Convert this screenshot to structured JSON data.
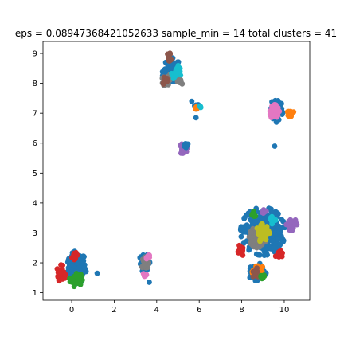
{
  "chart_data": {
    "type": "scatter",
    "title": "eps = 0.08947368421052633 sample_min = 14 total clusters = 41",
    "xlabel": "",
    "ylabel": "",
    "xlim": [
      -1.35,
      11.2
    ],
    "ylim": [
      0.75,
      9.4
    ],
    "xticks": [
      0,
      2,
      4,
      6,
      8,
      10
    ],
    "yticks": [
      1,
      2,
      3,
      4,
      5,
      6,
      7,
      8,
      9
    ],
    "grid": false,
    "legend": "none",
    "colors": [
      "#1f77b4",
      "#ff7f0e",
      "#2ca02c",
      "#d62728",
      "#9467bd",
      "#8c564b",
      "#e377c2",
      "#7f7f7f",
      "#bcbd22",
      "#17becf"
    ],
    "blobs": [
      {
        "cx": 0.25,
        "cy": 1.85,
        "rx": 0.45,
        "ry": 0.55,
        "n": 180,
        "color": "#1f77b4"
      },
      {
        "cx": -0.5,
        "cy": 1.65,
        "rx": 0.22,
        "ry": 0.28,
        "n": 30,
        "color": "#d62728"
      },
      {
        "cx": 0.2,
        "cy": 1.45,
        "rx": 0.3,
        "ry": 0.25,
        "n": 40,
        "color": "#2ca02c"
      },
      {
        "cx": 0.15,
        "cy": 2.2,
        "rx": 0.15,
        "ry": 0.15,
        "n": 12,
        "color": "#d62728"
      },
      {
        "cx": 3.45,
        "cy": 2.0,
        "rx": 0.3,
        "ry": 0.3,
        "n": 45,
        "color": "#1f77b4"
      },
      {
        "cx": 3.45,
        "cy": 2.0,
        "rx": 0.2,
        "ry": 0.2,
        "n": 25,
        "color": "#7f7f7f"
      },
      {
        "cx": 3.6,
        "cy": 2.2,
        "rx": 0.12,
        "ry": 0.12,
        "n": 10,
        "color": "#e377c2"
      },
      {
        "cx": 3.45,
        "cy": 1.6,
        "rx": 0.12,
        "ry": 0.1,
        "n": 10,
        "color": "#e377c2"
      },
      {
        "cx": 4.7,
        "cy": 8.4,
        "rx": 0.45,
        "ry": 0.45,
        "n": 90,
        "color": "#1f77b4"
      },
      {
        "cx": 4.5,
        "cy": 8.1,
        "rx": 0.25,
        "ry": 0.22,
        "n": 30,
        "color": "#7f7f7f"
      },
      {
        "cx": 4.95,
        "cy": 8.35,
        "rx": 0.25,
        "ry": 0.25,
        "n": 30,
        "color": "#17becf"
      },
      {
        "cx": 4.4,
        "cy": 8.1,
        "rx": 0.15,
        "ry": 0.15,
        "n": 12,
        "color": "#8c564b"
      },
      {
        "cx": 4.6,
        "cy": 8.9,
        "rx": 0.15,
        "ry": 0.15,
        "n": 12,
        "color": "#8c564b"
      },
      {
        "cx": 5.1,
        "cy": 8.05,
        "rx": 0.12,
        "ry": 0.12,
        "n": 10,
        "color": "#7f7f7f"
      },
      {
        "cx": 5.25,
        "cy": 5.8,
        "rx": 0.2,
        "ry": 0.18,
        "n": 25,
        "color": "#9467bd"
      },
      {
        "cx": 5.35,
        "cy": 5.95,
        "rx": 0.12,
        "ry": 0.1,
        "n": 10,
        "color": "#1f77b4"
      },
      {
        "cx": 5.85,
        "cy": 7.2,
        "rx": 0.15,
        "ry": 0.12,
        "n": 10,
        "color": "#1f77b4"
      },
      {
        "cx": 5.85,
        "cy": 7.15,
        "rx": 0.08,
        "ry": 0.08,
        "n": 6,
        "color": "#ff7f0e"
      },
      {
        "cx": 6.05,
        "cy": 7.2,
        "rx": 0.06,
        "ry": 0.06,
        "n": 4,
        "color": "#17becf"
      },
      {
        "cx": 9.65,
        "cy": 7.15,
        "rx": 0.3,
        "ry": 0.45,
        "n": 80,
        "color": "#1f77b4"
      },
      {
        "cx": 9.55,
        "cy": 7.05,
        "rx": 0.22,
        "ry": 0.28,
        "n": 40,
        "color": "#e377c2"
      },
      {
        "cx": 10.3,
        "cy": 7.0,
        "rx": 0.15,
        "ry": 0.12,
        "n": 12,
        "color": "#ff7f0e"
      },
      {
        "cx": 9.0,
        "cy": 3.05,
        "rx": 1.05,
        "ry": 0.8,
        "n": 320,
        "color": "#1f77b4"
      },
      {
        "cx": 8.75,
        "cy": 2.85,
        "rx": 0.4,
        "ry": 0.35,
        "n": 55,
        "color": "#7f7f7f"
      },
      {
        "cx": 9.0,
        "cy": 3.0,
        "rx": 0.35,
        "ry": 0.3,
        "n": 45,
        "color": "#bcbd22"
      },
      {
        "cx": 10.35,
        "cy": 3.3,
        "rx": 0.25,
        "ry": 0.22,
        "n": 30,
        "color": "#9467bd"
      },
      {
        "cx": 9.75,
        "cy": 2.3,
        "rx": 0.18,
        "ry": 0.15,
        "n": 15,
        "color": "#d62728"
      },
      {
        "cx": 7.95,
        "cy": 2.4,
        "rx": 0.15,
        "ry": 0.2,
        "n": 15,
        "color": "#d62728"
      },
      {
        "cx": 8.65,
        "cy": 1.7,
        "rx": 0.5,
        "ry": 0.3,
        "n": 55,
        "color": "#1f77b4"
      },
      {
        "cx": 8.8,
        "cy": 1.7,
        "rx": 0.3,
        "ry": 0.2,
        "n": 30,
        "color": "#ff7f0e"
      },
      {
        "cx": 8.65,
        "cy": 1.65,
        "rx": 0.22,
        "ry": 0.18,
        "n": 15,
        "color": "#8c564b"
      },
      {
        "cx": 8.95,
        "cy": 1.5,
        "rx": 0.15,
        "ry": 0.12,
        "n": 10,
        "color": "#2ca02c"
      },
      {
        "cx": 9.45,
        "cy": 3.45,
        "rx": 0.15,
        "ry": 0.15,
        "n": 12,
        "color": "#17becf"
      },
      {
        "cx": 8.55,
        "cy": 3.6,
        "rx": 0.12,
        "ry": 0.12,
        "n": 10,
        "color": "#2ca02c"
      },
      {
        "cx": 9.05,
        "cy": 3.7,
        "rx": 0.15,
        "ry": 0.12,
        "n": 10,
        "color": "#9467bd"
      }
    ],
    "points": [
      {
        "x": 9.55,
        "y": 5.9,
        "color": "#1f77b4"
      },
      {
        "x": 5.85,
        "y": 6.85,
        "color": "#1f77b4"
      },
      {
        "x": 5.65,
        "y": 7.4,
        "color": "#1f77b4"
      },
      {
        "x": 1.2,
        "y": 1.65,
        "color": "#1f77b4"
      },
      {
        "x": 3.65,
        "y": 1.35,
        "color": "#1f77b4"
      }
    ]
  }
}
